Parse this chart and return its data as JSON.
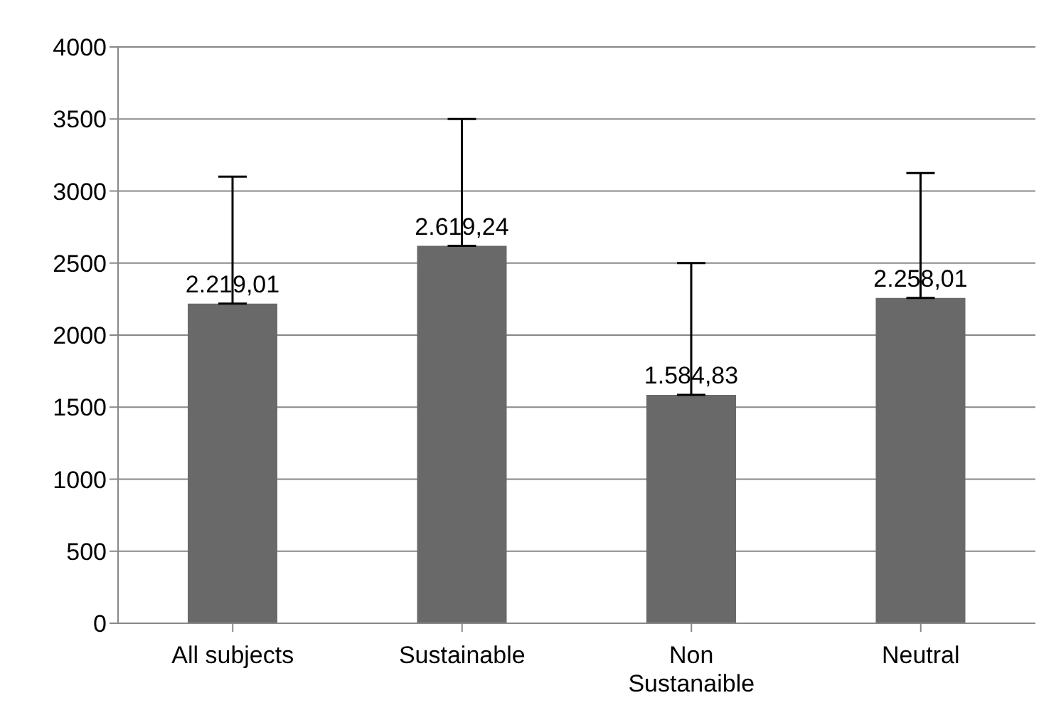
{
  "chart_data": {
    "type": "bar",
    "categories": [
      "All subjects",
      "Sustainable",
      "Non Sustanaible",
      "Neutral"
    ],
    "values": [
      2219.01,
      2619.24,
      1584.83,
      2258.01
    ],
    "value_labels": [
      "2.219,01",
      "2.619,24",
      "1.584,83",
      "2.258,01"
    ],
    "errors": [
      [
        2219.01,
        3100
      ],
      [
        2619.24,
        3500
      ],
      [
        1584.83,
        2500
      ],
      [
        2258.01,
        3125
      ]
    ],
    "color": "#696969",
    "ylim": [
      0,
      4000
    ],
    "yticks": [
      0,
      500,
      1000,
      1500,
      2000,
      2500,
      3000,
      3500,
      4000
    ],
    "grid": "y"
  }
}
